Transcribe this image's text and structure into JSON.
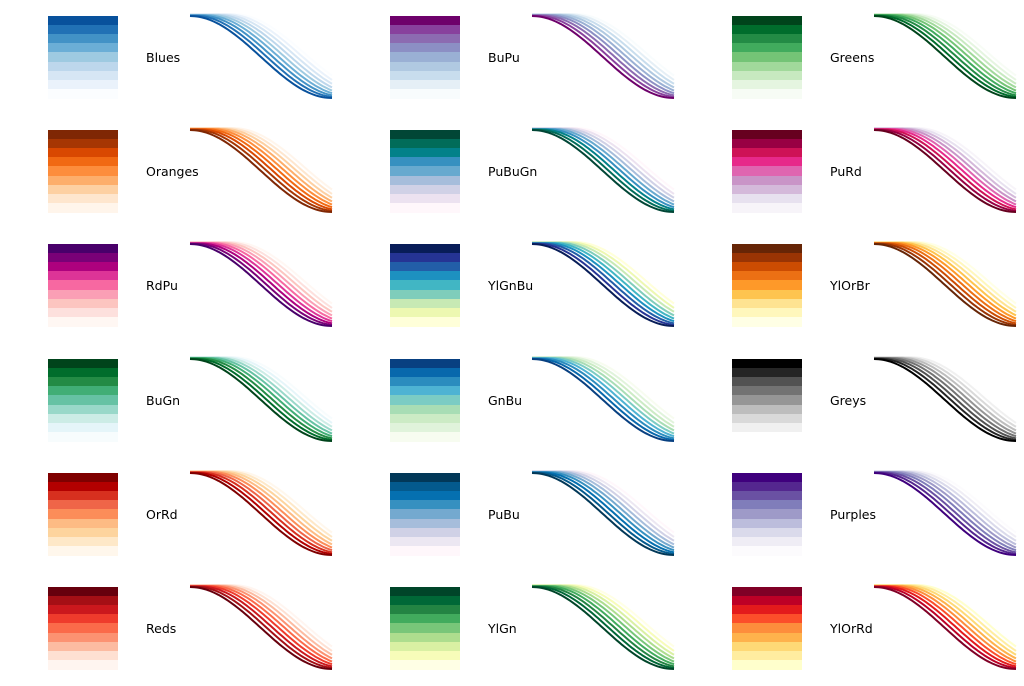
{
  "chart_data": {
    "type": "line",
    "curve_function": "cosine",
    "x_range": [
      0,
      3.14159
    ],
    "y_range": [
      -1,
      1
    ],
    "axes": "off",
    "grid": false,
    "layout_columns": 3,
    "layout_rows": 6,
    "colormaps": [
      {
        "name": "Blues",
        "colors": [
          "#fbfdff",
          "#eaf2fb",
          "#d6e6f4",
          "#bdd7ec",
          "#9ecae1",
          "#6baed6",
          "#4292c6",
          "#2171b5",
          "#08519c"
        ]
      },
      {
        "name": "BuPu",
        "colors": [
          "#f8fcfd",
          "#e5eff6",
          "#c8dded",
          "#b0c9e1",
          "#9ab0d4",
          "#8c8fc4",
          "#8c6bb1",
          "#88419d",
          "#6e016b"
        ]
      },
      {
        "name": "Greens",
        "colors": [
          "#f7fcf5",
          "#e5f5e0",
          "#c7e9c0",
          "#a1d99b",
          "#74c476",
          "#41ab5d",
          "#238b45",
          "#006d2c",
          "#00441b"
        ]
      },
      {
        "name": "Oranges",
        "colors": [
          "#fff5eb",
          "#fee6ce",
          "#fdd0a2",
          "#fdae6b",
          "#fd8d3c",
          "#f16913",
          "#d94801",
          "#a63603",
          "#7f2704"
        ]
      },
      {
        "name": "PuBuGn",
        "colors": [
          "#fff7fb",
          "#ece2f0",
          "#d0d1e6",
          "#a6bddb",
          "#67a9cf",
          "#3690c0",
          "#02818a",
          "#016c59",
          "#014636"
        ]
      },
      {
        "name": "PuRd",
        "colors": [
          "#f7f4f9",
          "#e7e1ef",
          "#d4b9da",
          "#c994c7",
          "#df65b0",
          "#e7298a",
          "#ce1256",
          "#980043",
          "#67001f"
        ]
      },
      {
        "name": "RdPu",
        "colors": [
          "#fff7f3",
          "#fde0dd",
          "#fcc5c0",
          "#fa9fb5",
          "#f768a1",
          "#dd3497",
          "#ae017e",
          "#7a0177",
          "#49006a"
        ]
      },
      {
        "name": "YlGnBu",
        "colors": [
          "#ffffd9",
          "#edf8b1",
          "#c7e9b4",
          "#7fcdbb",
          "#41b6c4",
          "#1d91c0",
          "#225ea8",
          "#253494",
          "#081d58"
        ]
      },
      {
        "name": "YlOrBr",
        "colors": [
          "#ffffe5",
          "#fff7bc",
          "#fee391",
          "#fec44f",
          "#fe9929",
          "#ec7014",
          "#cc4c02",
          "#993404",
          "#662506"
        ]
      },
      {
        "name": "BuGn",
        "colors": [
          "#f7fcfd",
          "#e5f5f9",
          "#ccece6",
          "#99d8c9",
          "#66c2a4",
          "#41ae76",
          "#238b45",
          "#006d2c",
          "#00441b"
        ]
      },
      {
        "name": "GnBu",
        "colors": [
          "#f7fcf0",
          "#e0f3db",
          "#ccebc5",
          "#a8ddb5",
          "#7bccc4",
          "#4eb3d3",
          "#2b8cbe",
          "#0868ac",
          "#084081"
        ]
      },
      {
        "name": "Greys",
        "colors": [
          "#ffffff",
          "#f0f0f0",
          "#d9d9d9",
          "#bdbdbd",
          "#969696",
          "#737373",
          "#525252",
          "#252525",
          "#000000"
        ]
      },
      {
        "name": "OrRd",
        "colors": [
          "#fff7ec",
          "#fee8c8",
          "#fdd49e",
          "#fdbb84",
          "#fc8d59",
          "#ef6548",
          "#d7301f",
          "#b30000",
          "#7f0000"
        ]
      },
      {
        "name": "PuBu",
        "colors": [
          "#fff7fb",
          "#ece7f2",
          "#d0d1e6",
          "#a6bddb",
          "#74a9cf",
          "#3690c0",
          "#0570b0",
          "#045a8d",
          "#023858"
        ]
      },
      {
        "name": "Purples",
        "colors": [
          "#fcfbfd",
          "#efedf5",
          "#dadaeb",
          "#bcbddc",
          "#9e9ac8",
          "#807dba",
          "#6a51a3",
          "#54278f",
          "#3f007d"
        ]
      },
      {
        "name": "Reds",
        "colors": [
          "#fff5f0",
          "#fee0d2",
          "#fcbba1",
          "#fc9272",
          "#fb6a4a",
          "#ef3b2c",
          "#cb181d",
          "#a50f15",
          "#67000d"
        ]
      },
      {
        "name": "YlGn",
        "colors": [
          "#ffffe5",
          "#f7fcb9",
          "#d9f0a3",
          "#addd8e",
          "#78c679",
          "#41ab5d",
          "#238443",
          "#006837",
          "#004529"
        ]
      },
      {
        "name": "YlOrRd",
        "colors": [
          "#ffffcc",
          "#ffeda0",
          "#fed976",
          "#feb24c",
          "#fd8d3c",
          "#fc4e2a",
          "#e31a1c",
          "#bd0026",
          "#800026"
        ]
      }
    ]
  }
}
